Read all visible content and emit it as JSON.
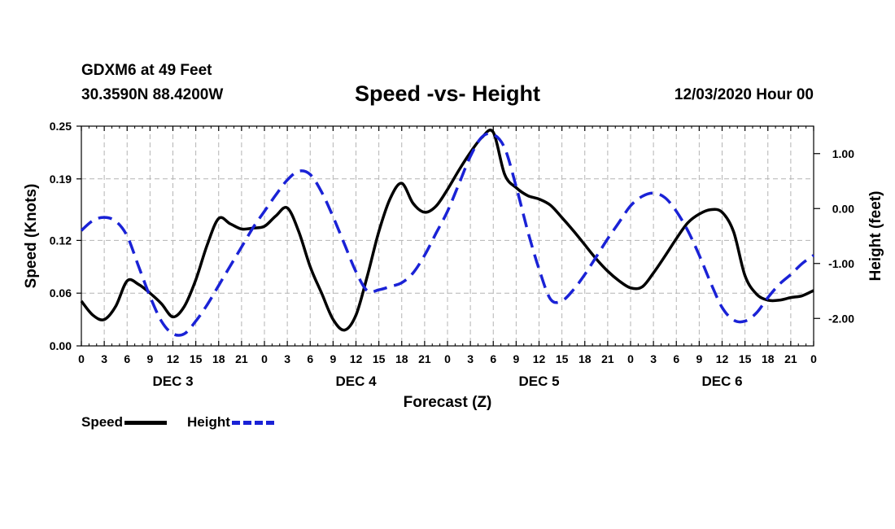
{
  "header": {
    "station": "GDXM6 at 49 Feet",
    "coords": "30.3590N 88.4200W",
    "title": "Speed -vs- Height",
    "date": "12/03/2020 Hour 00"
  },
  "legend": {
    "speed_label": "Speed",
    "height_label": "Height"
  },
  "chart_data": {
    "type": "line",
    "title": "Speed -vs- Height",
    "xlabel": "Forecast (Z)",
    "ylabel": "Speed (Knots)",
    "y2label": "Height (feet)",
    "xlim": [
      0,
      96
    ],
    "ylim": [
      0,
      0.25
    ],
    "y2lim": [
      -2.5,
      1.5
    ],
    "grid": true,
    "legend": "bottom-left",
    "x_tick_values": [
      0,
      3,
      6,
      9,
      12,
      15,
      18,
      21,
      24,
      27,
      30,
      33,
      36,
      39,
      42,
      45,
      48,
      51,
      54,
      57,
      60,
      63,
      66,
      69,
      72,
      75,
      78,
      81,
      84,
      87,
      90,
      93,
      96
    ],
    "x_tick_labels": [
      "0",
      "3",
      "6",
      "9",
      "12",
      "15",
      "18",
      "21",
      "0",
      "3",
      "6",
      "9",
      "12",
      "15",
      "18",
      "21",
      "0",
      "3",
      "6",
      "9",
      "12",
      "15",
      "18",
      "21",
      "0",
      "3",
      "6",
      "9",
      "12",
      "15",
      "18",
      "21",
      "0"
    ],
    "day_labels": [
      {
        "x": 12,
        "label": "DEC 3"
      },
      {
        "x": 36,
        "label": "DEC 4"
      },
      {
        "x": 60,
        "label": "DEC 5"
      },
      {
        "x": 84,
        "label": "DEC 6"
      }
    ],
    "y_tick_values": [
      0.0,
      0.06,
      0.12,
      0.19,
      0.25
    ],
    "y_tick_labels": [
      "0.00",
      "0.06",
      "0.12",
      "0.19",
      "0.25"
    ],
    "y2_tick_values": [
      1.0,
      0.0,
      -1.0,
      -2.0
    ],
    "y2_tick_labels": [
      "1.00",
      "0.00",
      "-1.00",
      "-2.00"
    ],
    "series": [
      {
        "name": "Speed",
        "axis": "left",
        "color": "#000000",
        "dash": "solid",
        "points": [
          [
            0,
            0.051
          ],
          [
            1.5,
            0.035
          ],
          [
            3,
            0.03
          ],
          [
            4.5,
            0.045
          ],
          [
            6,
            0.074
          ],
          [
            7.5,
            0.07
          ],
          [
            9,
            0.06
          ],
          [
            10.5,
            0.048
          ],
          [
            12,
            0.033
          ],
          [
            13.5,
            0.045
          ],
          [
            15,
            0.075
          ],
          [
            16.5,
            0.115
          ],
          [
            18,
            0.145
          ],
          [
            19.5,
            0.139
          ],
          [
            21,
            0.133
          ],
          [
            22.5,
            0.134
          ],
          [
            24,
            0.136
          ],
          [
            25.5,
            0.148
          ],
          [
            27,
            0.157
          ],
          [
            28.5,
            0.13
          ],
          [
            30,
            0.09
          ],
          [
            31.5,
            0.06
          ],
          [
            33,
            0.03
          ],
          [
            34.5,
            0.018
          ],
          [
            36,
            0.035
          ],
          [
            37.5,
            0.08
          ],
          [
            39,
            0.13
          ],
          [
            40.5,
            0.168
          ],
          [
            42,
            0.185
          ],
          [
            43.5,
            0.162
          ],
          [
            45,
            0.152
          ],
          [
            46.5,
            0.159
          ],
          [
            48,
            0.178
          ],
          [
            49.5,
            0.2
          ],
          [
            51,
            0.22
          ],
          [
            52.5,
            0.237
          ],
          [
            54,
            0.243
          ],
          [
            55.5,
            0.195
          ],
          [
            57,
            0.18
          ],
          [
            58.5,
            0.171
          ],
          [
            60,
            0.167
          ],
          [
            61.5,
            0.16
          ],
          [
            63,
            0.146
          ],
          [
            64.5,
            0.131
          ],
          [
            66,
            0.115
          ],
          [
            67.5,
            0.099
          ],
          [
            69,
            0.085
          ],
          [
            70.5,
            0.074
          ],
          [
            72,
            0.066
          ],
          [
            73.5,
            0.067
          ],
          [
            75,
            0.083
          ],
          [
            76.5,
            0.102
          ],
          [
            78,
            0.122
          ],
          [
            79.5,
            0.14
          ],
          [
            81,
            0.15
          ],
          [
            82.5,
            0.155
          ],
          [
            84,
            0.152
          ],
          [
            85.5,
            0.13
          ],
          [
            87,
            0.08
          ],
          [
            88.5,
            0.059
          ],
          [
            90,
            0.052
          ],
          [
            91.5,
            0.052
          ],
          [
            93,
            0.055
          ],
          [
            94.5,
            0.057
          ],
          [
            96,
            0.063
          ]
        ]
      },
      {
        "name": "Height",
        "axis": "right",
        "color": "#1a22d6",
        "dash": "dashed",
        "points": [
          [
            0,
            -0.4
          ],
          [
            1.5,
            -0.22
          ],
          [
            3,
            -0.16
          ],
          [
            4.5,
            -0.23
          ],
          [
            6,
            -0.5
          ],
          [
            7.5,
            -1.05
          ],
          [
            9,
            -1.6
          ],
          [
            10.5,
            -2.05
          ],
          [
            12,
            -2.28
          ],
          [
            13.5,
            -2.28
          ],
          [
            15,
            -2.05
          ],
          [
            16.5,
            -1.75
          ],
          [
            18,
            -1.4
          ],
          [
            19.5,
            -1.05
          ],
          [
            21,
            -0.7
          ],
          [
            22.5,
            -0.35
          ],
          [
            24,
            -0.05
          ],
          [
            25.5,
            0.25
          ],
          [
            27,
            0.52
          ],
          [
            28.5,
            0.68
          ],
          [
            30,
            0.62
          ],
          [
            31.5,
            0.3
          ],
          [
            33,
            -0.15
          ],
          [
            34.5,
            -0.65
          ],
          [
            36,
            -1.15
          ],
          [
            37.5,
            -1.5
          ],
          [
            39,
            -1.48
          ],
          [
            40.5,
            -1.42
          ],
          [
            42,
            -1.35
          ],
          [
            43.5,
            -1.17
          ],
          [
            45,
            -0.85
          ],
          [
            46.5,
            -0.45
          ],
          [
            48,
            -0.05
          ],
          [
            49.5,
            0.45
          ],
          [
            51,
            0.95
          ],
          [
            52.5,
            1.3
          ],
          [
            54,
            1.35
          ],
          [
            55.5,
            1.1
          ],
          [
            57,
            0.4
          ],
          [
            58.5,
            -0.4
          ],
          [
            60,
            -1.1
          ],
          [
            61.5,
            -1.65
          ],
          [
            63,
            -1.68
          ],
          [
            64.5,
            -1.48
          ],
          [
            66,
            -1.2
          ],
          [
            67.5,
            -0.88
          ],
          [
            69,
            -0.55
          ],
          [
            70.5,
            -0.25
          ],
          [
            72,
            0.05
          ],
          [
            73.5,
            0.22
          ],
          [
            75,
            0.28
          ],
          [
            76.5,
            0.2
          ],
          [
            78,
            -0.05
          ],
          [
            79.5,
            -0.4
          ],
          [
            81,
            -0.85
          ],
          [
            82.5,
            -1.35
          ],
          [
            84,
            -1.8
          ],
          [
            85.5,
            -2.03
          ],
          [
            87,
            -2.05
          ],
          [
            88.5,
            -1.9
          ],
          [
            90,
            -1.62
          ],
          [
            91.5,
            -1.38
          ],
          [
            93,
            -1.2
          ],
          [
            94.5,
            -1.0
          ],
          [
            96,
            -0.85
          ]
        ]
      }
    ]
  }
}
